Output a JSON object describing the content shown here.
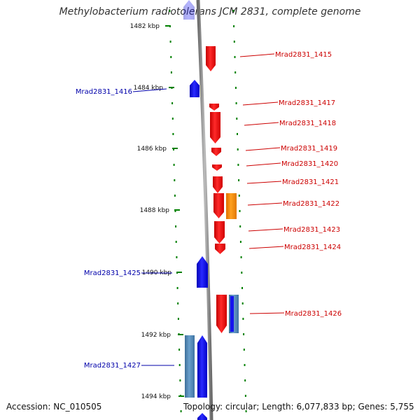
{
  "title": "Methylobacterium radiotolerans JCM 2831, complete genome",
  "footer": {
    "accession": "Accession: NC_010505",
    "topology": "Topology: circular; Length: 6,077,833 bp; Genes: 5,755"
  },
  "colors": {
    "forward_gene": "#ff0000",
    "reverse_gene": "#0000ff",
    "orange_gene": "#ff8c00",
    "steel_gene": "#4f86b8",
    "axis": "#888888",
    "ticks": "#008000",
    "label_forward": "#cc0000",
    "label_reverse": "#0000aa"
  },
  "scale": {
    "ticks": [
      {
        "kbp": 1482,
        "label": "1482 kbp"
      },
      {
        "kbp": 1484,
        "label": "1484 kbp"
      },
      {
        "kbp": 1486,
        "label": "1486 kbp"
      },
      {
        "kbp": 1488,
        "label": "1488 kbp"
      },
      {
        "kbp": 1490,
        "label": "1490 kbp"
      },
      {
        "kbp": 1492,
        "label": "1492 kbp"
      },
      {
        "kbp": 1494,
        "label": "1494 kbp"
      }
    ]
  },
  "gene_labels": {
    "reverse": [
      "Mrad2831_1416",
      "Mrad2831_1425",
      "Mrad2831_1427"
    ],
    "forward": [
      "Mrad2831_1415",
      "Mrad2831_1417",
      "Mrad2831_1418",
      "Mrad2831_1419",
      "Mrad2831_1420",
      "Mrad2831_1421",
      "Mrad2831_1422",
      "Mrad2831_1423",
      "Mrad2831_1424",
      "Mrad2831_1426"
    ]
  }
}
